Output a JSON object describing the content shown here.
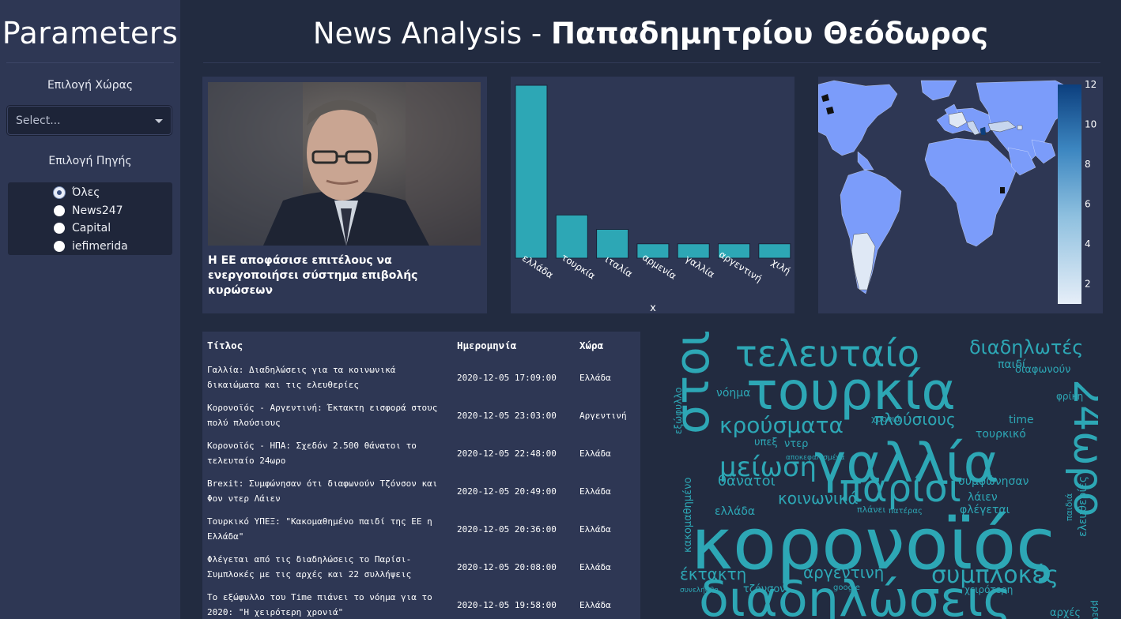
{
  "sidebar": {
    "title": "Parameters",
    "country_label": "Επιλογή Χώρας",
    "country_placeholder": "Select...",
    "source_label": "Επιλογή Πηγής",
    "sources": [
      {
        "label": "Όλες",
        "selected": true
      },
      {
        "label": "News247",
        "selected": false
      },
      {
        "label": "Capital",
        "selected": false
      },
      {
        "label": "iefimerida",
        "selected": false
      }
    ]
  },
  "header": {
    "title_prefix": "News Analysis - ",
    "title_name": "Παπαδημητρίου Θεόδωρος"
  },
  "news": {
    "headline": "Η ΕΕ αποφάσισε επιτέλους να ενεργοποιήσει σύστημα επιβολής κυρώσεων"
  },
  "chart_data": [
    {
      "type": "bar",
      "categories": [
        "ελλάδα",
        "τουρκία",
        "ιταλία",
        "αρμενία",
        "γαλλία",
        "αργεντινή",
        "χιλή"
      ],
      "values": [
        12,
        3,
        2,
        1,
        1,
        1,
        1
      ],
      "xlabel": "x",
      "ylabel": "",
      "ylim": [
        0,
        12
      ],
      "color": "#2da7b5"
    },
    {
      "type": "heatmap",
      "subtype": "choropleth",
      "colorbar_ticks": [
        2,
        4,
        6,
        8,
        10,
        12
      ],
      "colorscale": [
        "#e6eef8",
        "#0c3f7e"
      ],
      "land_color": "#7b9cfa"
    }
  ],
  "table": {
    "headers": [
      "Τίτλος",
      "Ημερομηνία",
      "Χώρα"
    ],
    "rows": [
      {
        "title": "Γαλλία: Διαδηλώσεις για τα κοινωνικά δικαιώματα και τις ελευθερίες",
        "date": "2020-12-05 17:09:00",
        "country": "Ελλάδα"
      },
      {
        "title": "Κορονοϊός - Αργεντινή: Έκτακτη εισφορά στους πολύ πλούσιους",
        "date": "2020-12-05 23:03:00",
        "country": "Αργεντινή"
      },
      {
        "title": "Κορονοϊός - ΗΠΑ: Σχεδόν 2.500 θάνατοι το τελευταίο 24ωρο",
        "date": "2020-12-05 22:48:00",
        "country": "Ελλάδα"
      },
      {
        "title": "Brexit: Συμφώνησαν ότι διαφωνούν Τζόνσον και Φον ντερ Λάιεν",
        "date": "2020-12-05 20:49:00",
        "country": "Ελλάδα"
      },
      {
        "title": "Τουρκικό ΥΠΕΞ: \"Κακομαθημένο παιδί της ΕΕ η Ελλάδα\"",
        "date": "2020-12-05 20:36:00",
        "country": "Ελλάδα"
      },
      {
        "title": "Φλέγεται από τις διαδηλώσεις το Παρίσι- Συμπλοκές με τις αρχές και 22 συλλήψεις",
        "date": "2020-12-05 20:08:00",
        "country": "Ελλάδα"
      },
      {
        "title": "Το εξώφυλλο του Time πιάνει το νόημα για το 2020: \"Η χειρότερη χρονιά\"",
        "date": "2020-12-05 19:58:00",
        "country": "Ελλάδα"
      }
    ]
  },
  "wordcloud": {
    "color": "#2da7b5",
    "words": [
      "τελευταίο",
      "διαδηλωτές",
      "τουρκία",
      "στους",
      "κρούσματα",
      "24ωρο",
      "γαλλία",
      "πλούσιους",
      "time",
      "μείωση",
      "παρίσι",
      "κοινωνικά",
      "κορονοϊός",
      "συμπλοκές",
      "αργεντινή",
      "έκτακτη",
      "διαδηλώσεις",
      "θάνατοι",
      "νόημα",
      "χρονιά",
      "παιδί",
      "διαφωνούν",
      "φρίκη",
      "εξώφυλλο",
      "υπεξ",
      "ντερ",
      "αποκεφαλισμένα",
      "τουρκικό",
      "συμφώνησαν",
      "λάιεν",
      "ελευθερίες",
      "κακομαθημένο",
      "ελλάδα",
      "πλάνει",
      "πατέρας",
      "φλέγεται",
      "τζόνσον",
      "google",
      "χειρότερη",
      "συνελήφθη",
      "βρέθηκαν",
      "αρχές",
      "παιδιά"
    ]
  }
}
